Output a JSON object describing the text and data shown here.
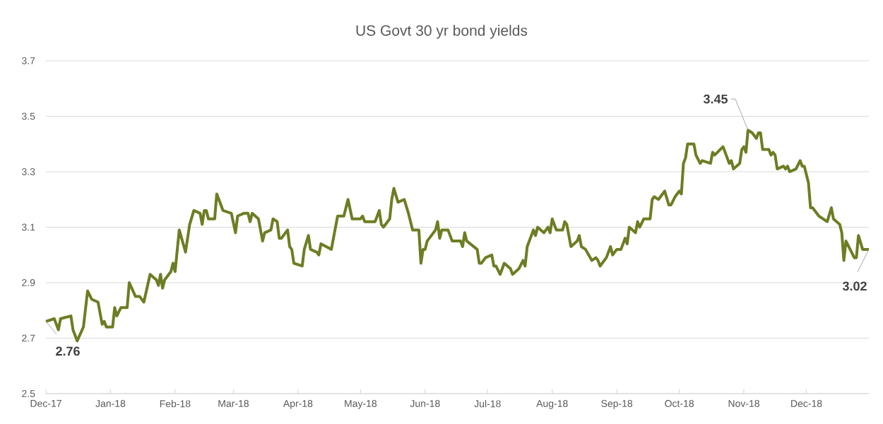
{
  "chart_data": {
    "type": "line",
    "title": "US Govt 30 yr bond yields",
    "x": [
      "2017-12-01",
      "2017-12-05",
      "2017-12-07",
      "2017-12-08",
      "2017-12-13",
      "2017-12-14",
      "2017-12-16",
      "2017-12-19",
      "2017-12-21",
      "2017-12-23",
      "2017-12-26",
      "2017-12-28",
      "2017-12-29",
      "2017-12-30",
      "2018-01-02",
      "2018-01-03",
      "2018-01-04",
      "2018-01-06",
      "2018-01-09",
      "2018-01-10",
      "2018-01-13",
      "2018-01-15",
      "2018-01-17",
      "2018-01-20",
      "2018-01-23",
      "2018-01-24",
      "2018-01-25",
      "2018-01-26",
      "2018-01-27",
      "2018-01-30",
      "2018-01-31",
      "2018-02-01",
      "2018-02-03",
      "2018-02-06",
      "2018-02-08",
      "2018-02-10",
      "2018-02-13",
      "2018-02-14",
      "2018-02-15",
      "2018-02-16",
      "2018-02-17",
      "2018-02-20",
      "2018-02-21",
      "2018-02-22",
      "2018-02-24",
      "2018-02-28",
      "2018-03-02",
      "2018-03-03",
      "2018-03-06",
      "2018-03-08",
      "2018-03-09",
      "2018-03-10",
      "2018-03-13",
      "2018-03-15",
      "2018-03-16",
      "2018-03-19",
      "2018-03-20",
      "2018-03-22",
      "2018-03-23",
      "2018-03-24",
      "2018-03-27",
      "2018-03-28",
      "2018-03-29",
      "2018-03-30",
      "2018-04-03",
      "2018-04-04",
      "2018-04-06",
      "2018-04-07",
      "2018-04-10",
      "2018-04-11",
      "2018-04-12",
      "2018-04-17",
      "2018-04-20",
      "2018-04-23",
      "2018-04-25",
      "2018-04-27",
      "2018-05-01",
      "2018-05-02",
      "2018-05-03",
      "2018-05-08",
      "2018-05-10",
      "2018-05-11",
      "2018-05-12",
      "2018-05-15",
      "2018-05-16",
      "2018-05-17",
      "2018-05-19",
      "2018-05-22",
      "2018-05-24",
      "2018-05-26",
      "2018-05-29",
      "2018-05-30",
      "2018-05-31",
      "2018-06-01",
      "2018-06-02",
      "2018-06-05",
      "2018-06-06",
      "2018-06-07",
      "2018-06-08",
      "2018-06-09",
      "2018-06-12",
      "2018-06-14",
      "2018-06-18",
      "2018-06-19",
      "2018-06-20",
      "2018-06-21",
      "2018-06-26",
      "2018-06-27",
      "2018-06-28",
      "2018-06-30",
      "2018-07-03",
      "2018-07-04",
      "2018-07-05",
      "2018-07-07",
      "2018-07-09",
      "2018-07-12",
      "2018-07-13",
      "2018-07-16",
      "2018-07-18",
      "2018-07-19",
      "2018-07-20",
      "2018-07-23",
      "2018-07-24",
      "2018-07-25",
      "2018-07-28",
      "2018-07-30",
      "2018-07-31",
      "2018-08-01",
      "2018-08-03",
      "2018-08-06",
      "2018-08-07",
      "2018-08-08",
      "2018-08-10",
      "2018-08-13",
      "2018-08-14",
      "2018-08-15",
      "2018-08-17",
      "2018-08-20",
      "2018-08-22",
      "2018-08-23",
      "2018-08-24",
      "2018-08-27",
      "2018-08-29",
      "2018-08-30",
      "2018-09-01",
      "2018-09-03",
      "2018-09-05",
      "2018-09-06",
      "2018-09-07",
      "2018-09-10",
      "2018-09-11",
      "2018-09-12",
      "2018-09-14",
      "2018-09-17",
      "2018-09-18",
      "2018-09-19",
      "2018-09-21",
      "2018-09-24",
      "2018-09-26",
      "2018-09-27",
      "2018-09-29",
      "2018-10-01",
      "2018-10-02",
      "2018-10-03",
      "2018-10-04",
      "2018-10-05",
      "2018-10-08",
      "2018-10-09",
      "2018-10-11",
      "2018-10-12",
      "2018-10-16",
      "2018-10-17",
      "2018-10-18",
      "2018-10-22",
      "2018-10-24",
      "2018-10-25",
      "2018-10-26",
      "2018-10-27",
      "2018-10-30",
      "2018-10-31",
      "2018-11-01",
      "2018-11-02",
      "2018-11-03",
      "2018-11-05",
      "2018-11-07",
      "2018-11-08",
      "2018-11-09",
      "2018-11-10",
      "2018-11-13",
      "2018-11-14",
      "2018-11-15",
      "2018-11-16",
      "2018-11-17",
      "2018-11-20",
      "2018-11-21",
      "2018-11-22",
      "2018-11-23",
      "2018-11-26",
      "2018-11-28",
      "2018-11-29",
      "2018-11-30",
      "2018-12-02",
      "2018-12-03",
      "2018-12-04",
      "2018-12-07",
      "2018-12-11",
      "2018-12-13",
      "2018-12-14",
      "2018-12-17",
      "2018-12-18",
      "2018-12-19",
      "2018-12-20",
      "2018-12-24",
      "2018-12-25",
      "2018-12-26",
      "2018-12-28",
      "2018-12-31"
    ],
    "series": [
      {
        "color": "#6b7e23",
        "values": [
          2.76,
          2.77,
          2.73,
          2.77,
          2.78,
          2.73,
          2.69,
          2.74,
          2.87,
          2.84,
          2.83,
          2.75,
          2.76,
          2.74,
          2.74,
          2.81,
          2.78,
          2.81,
          2.81,
          2.9,
          2.85,
          2.85,
          2.83,
          2.93,
          2.91,
          2.89,
          2.93,
          2.88,
          2.91,
          2.94,
          2.97,
          2.94,
          3.09,
          3.01,
          3.11,
          3.16,
          3.15,
          3.11,
          3.16,
          3.16,
          3.13,
          3.13,
          3.22,
          3.2,
          3.16,
          3.15,
          3.08,
          3.14,
          3.15,
          3.15,
          3.12,
          3.15,
          3.13,
          3.05,
          3.08,
          3.09,
          3.13,
          3.12,
          3.06,
          3.06,
          3.09,
          3.03,
          3.02,
          2.97,
          2.96,
          3.02,
          3.07,
          3.02,
          3.01,
          3.0,
          3.04,
          3.02,
          3.14,
          3.14,
          3.2,
          3.13,
          3.13,
          3.14,
          3.12,
          3.12,
          3.16,
          3.11,
          3.1,
          3.13,
          3.2,
          3.24,
          3.19,
          3.2,
          3.15,
          3.09,
          3.09,
          2.97,
          3.02,
          3.02,
          3.05,
          3.08,
          3.09,
          3.12,
          3.06,
          3.09,
          3.09,
          3.05,
          3.05,
          3.03,
          3.08,
          3.05,
          3.02,
          2.97,
          2.97,
          2.99,
          3.0,
          2.96,
          2.96,
          2.93,
          2.97,
          2.95,
          2.93,
          2.95,
          2.98,
          2.96,
          3.03,
          3.09,
          3.07,
          3.1,
          3.08,
          3.1,
          3.08,
          3.13,
          3.09,
          3.09,
          3.12,
          3.11,
          3.03,
          3.05,
          3.07,
          3.03,
          3.02,
          2.98,
          2.99,
          2.98,
          2.96,
          2.99,
          3.03,
          3.0,
          3.02,
          3.02,
          3.06,
          3.04,
          3.1,
          3.08,
          3.12,
          3.1,
          3.13,
          3.13,
          3.2,
          3.21,
          3.2,
          3.23,
          3.18,
          3.18,
          3.21,
          3.23,
          3.22,
          3.33,
          3.35,
          3.4,
          3.4,
          3.36,
          3.33,
          3.34,
          3.33,
          3.37,
          3.36,
          3.39,
          3.35,
          3.33,
          3.34,
          3.31,
          3.33,
          3.38,
          3.39,
          3.37,
          3.45,
          3.44,
          3.42,
          3.44,
          3.44,
          3.38,
          3.38,
          3.36,
          3.37,
          3.36,
          3.31,
          3.32,
          3.31,
          3.32,
          3.3,
          3.31,
          3.34,
          3.32,
          3.32,
          3.26,
          3.17,
          3.17,
          3.14,
          3.12,
          3.17,
          3.13,
          3.11,
          3.08,
          2.98,
          3.05,
          2.99,
          2.99,
          3.07,
          3.02,
          3.02
        ]
      }
    ],
    "xlim": [
      "2017-12-01",
      "2018-12-31"
    ],
    "xticks": [
      {
        "value": "2017-12-01",
        "label": "Dec-17"
      },
      {
        "value": "2018-01-01",
        "label": "Jan-18"
      },
      {
        "value": "2018-02-01",
        "label": "Feb-18"
      },
      {
        "value": "2018-03-01",
        "label": "Mar-18"
      },
      {
        "value": "2018-04-01",
        "label": "Apr-18"
      },
      {
        "value": "2018-05-01",
        "label": "May-18"
      },
      {
        "value": "2018-06-01",
        "label": "Jun-18"
      },
      {
        "value": "2018-07-01",
        "label": "Jul-18"
      },
      {
        "value": "2018-08-01",
        "label": "Aug-18"
      },
      {
        "value": "2018-09-01",
        "label": "Sep-18"
      },
      {
        "value": "2018-10-01",
        "label": "Oct-18"
      },
      {
        "value": "2018-11-01",
        "label": "Nov-18"
      },
      {
        "value": "2018-12-01",
        "label": "Dec-18"
      }
    ],
    "ylim": [
      2.5,
      3.7
    ],
    "yticks": [
      2.5,
      2.7,
      2.9,
      3.1,
      3.3,
      3.5,
      3.7
    ],
    "grid": "y",
    "annotations": [
      {
        "text": "2.76",
        "x": "2017-12-01",
        "y": 2.76
      },
      {
        "text": "3.45",
        "x": "2018-11-03",
        "y": 3.45
      },
      {
        "text": "3.02",
        "x": "2018-12-31",
        "y": 3.02
      }
    ]
  }
}
